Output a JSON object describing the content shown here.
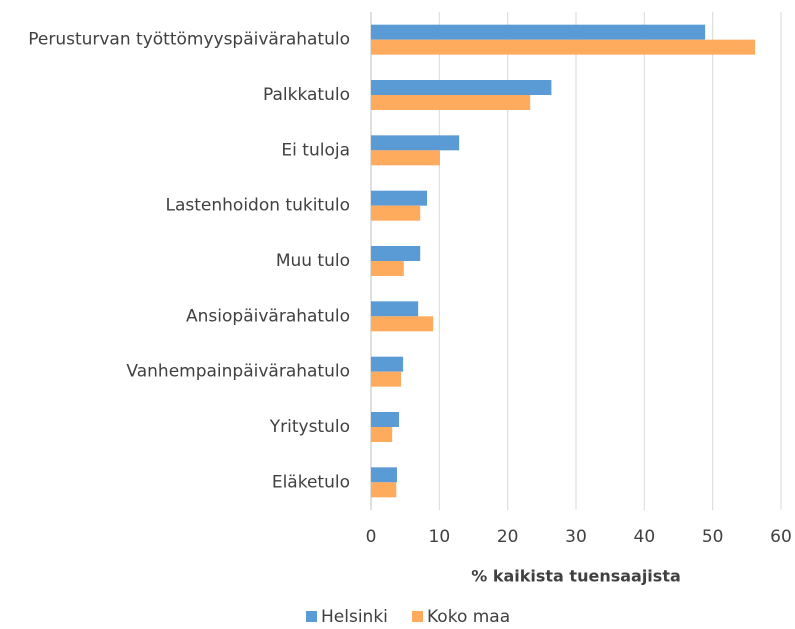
{
  "chart_data": {
    "type": "hbar",
    "categories": [
      "Perusturvan työttömyyspäivärahatulo",
      "Palkkatulo",
      "Ei tuloja",
      "Lastenhoidon tukitulo",
      "Muu tulo",
      "Ansiopäivärahatulo",
      "Vanhempainpäivärahatulo",
      "Yritystulo",
      "Eläketulo"
    ],
    "series": [
      {
        "name": "Helsinki",
        "color": "#5b9bd5",
        "values": [
          48.9,
          26.4,
          12.9,
          8.2,
          7.2,
          6.9,
          4.7,
          4.1,
          3.8
        ]
      },
      {
        "name": "Koko maa",
        "color": "#ffab5e",
        "values": [
          56.2,
          23.3,
          10.1,
          7.2,
          4.8,
          9.1,
          4.4,
          3.1,
          3.7
        ]
      }
    ],
    "xlabel": "% kaikista tuensaajista",
    "xlim": [
      0,
      60
    ],
    "xticks": [
      0,
      10,
      20,
      30,
      40,
      50,
      60
    ],
    "grid": true
  }
}
